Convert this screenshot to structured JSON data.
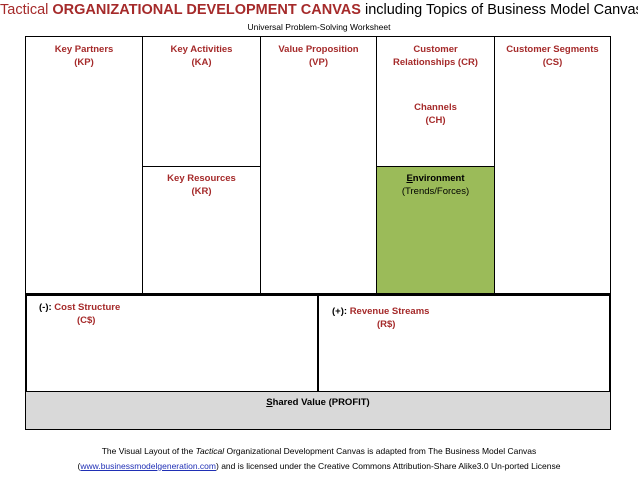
{
  "header": {
    "title_prefix": "Tactical",
    "title_main": "ORGANIZATIONAL DEVELOPMENT CANVAS",
    "title_suffix": "including Topics of Business Model Canvas",
    "subtitle": "Universal Problem-Solving Worksheet"
  },
  "blocks": {
    "key_partners": {
      "name": "Key Partners",
      "code": "(KP)"
    },
    "key_activities": {
      "name": "Key Activities",
      "code": "(KA)"
    },
    "key_resources": {
      "name": "Key Resources",
      "code": "(KR)"
    },
    "value_proposition": {
      "name": "Value Proposition",
      "code": "(VP)"
    },
    "customer_relationships": {
      "name_line1": "Customer",
      "name_line2": "Relationships (CR)"
    },
    "channels": {
      "name": "Channels",
      "code": "(CH)"
    },
    "environment": {
      "name_first": "E",
      "name_rest": "nvironment",
      "sub": "(Trends/Forces)"
    },
    "customer_segments": {
      "name": "Customer Segments",
      "code": "(CS)"
    },
    "cost_structure": {
      "prefix": "(-): ",
      "name": "Cost Structure",
      "code": "(C$)"
    },
    "revenue_streams": {
      "prefix": "(+): ",
      "name": "Revenue Streams",
      "code": "(R$)"
    },
    "shared_value": {
      "first": "S",
      "rest": "hared Value (PROFIT)"
    }
  },
  "footer": {
    "line1_a": "The Visual Layout of the ",
    "line1_italic": "Tactical",
    "line1_b": " Organizational Development Canvas is adapted from The Business Model Canvas",
    "line2_open": "(",
    "link": "www.businessmodelgeneration.com",
    "line2_rest": ") and is licensed under the Creative Commons Attribution-Share Alike3.0 Un-ported License"
  },
  "colors": {
    "accent": "#a52a2a",
    "environment": "#9bbb59",
    "shared": "#d9d9d9"
  }
}
